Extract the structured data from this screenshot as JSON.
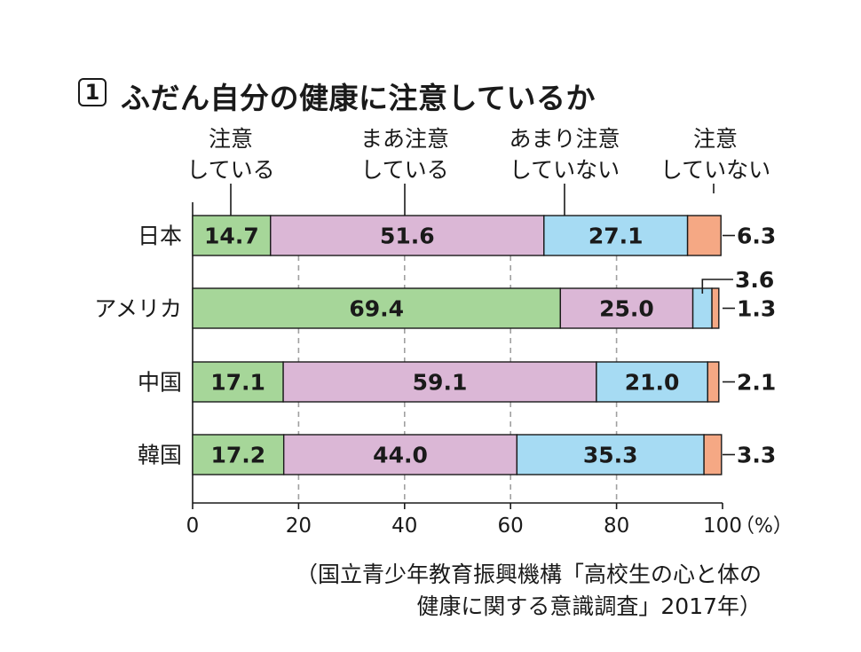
{
  "title": {
    "number": "1",
    "text": "ふだん自分の健康に注意しているか"
  },
  "legend_labels": [
    [
      "注意",
      "している"
    ],
    [
      "まあ注意",
      "している"
    ],
    [
      "あまり注意",
      "していない"
    ],
    [
      "注意",
      "していない"
    ]
  ],
  "colors": {
    "series": [
      "#a6d699",
      "#dbb7d6",
      "#a6dbf3",
      "#f5a884"
    ],
    "border": "#1a1a1a",
    "gridline": "#a0a0a0"
  },
  "source": {
    "line1": "（国立青少年教育振興機構「高校生の心と体の",
    "line2": "健康に関する意識調査」2017年）"
  },
  "chart_data": {
    "type": "bar",
    "orientation": "horizontal",
    "stacked": true,
    "categories": [
      "日本",
      "アメリカ",
      "中国",
      "韓国"
    ],
    "series": [
      {
        "name": "注意している",
        "values": [
          14.7,
          69.4,
          17.1,
          17.2
        ]
      },
      {
        "name": "まあ注意している",
        "values": [
          51.6,
          25.0,
          59.1,
          44.0
        ]
      },
      {
        "name": "あまり注意していない",
        "values": [
          27.1,
          3.6,
          21.0,
          35.3
        ]
      },
      {
        "name": "注意していない",
        "values": [
          6.3,
          1.3,
          2.1,
          3.3
        ]
      }
    ],
    "value_labels": [
      [
        "14.7",
        "51.6",
        "27.1",
        "6.3"
      ],
      [
        "69.4",
        "25.0",
        "3.6",
        "1.3"
      ],
      [
        "17.1",
        "59.1",
        "21.0",
        "2.1"
      ],
      [
        "17.2",
        "44.0",
        "35.3",
        "3.3"
      ]
    ],
    "xlim": [
      0,
      100
    ],
    "xticks": [
      0,
      20,
      40,
      60,
      80,
      100
    ],
    "xtick_labels": [
      "0",
      "20",
      "40",
      "60",
      "80",
      "100"
    ],
    "x_unit": "（%）",
    "grid": true
  }
}
